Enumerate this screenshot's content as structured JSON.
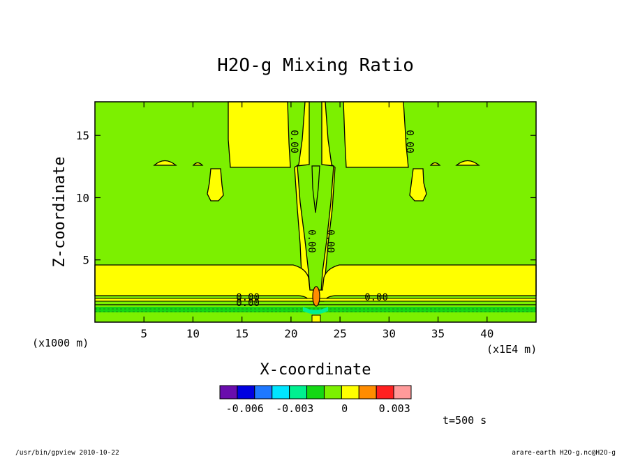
{
  "chart_data": {
    "type": "heatmap",
    "title": "H2O-g Mixing Ratio",
    "xlabel": "X-coordinate",
    "ylabel": "Z-coordinate",
    "x_unit_left": "(x1000 m)",
    "x_unit_right": "(x1E4 m)",
    "xlim": [
      0,
      45
    ],
    "ylim": [
      0,
      17.7
    ],
    "x_ticks": [
      "5",
      "10",
      "15",
      "20",
      "25",
      "30",
      "35",
      "40"
    ],
    "x_tick_values": [
      5,
      10,
      15,
      20,
      25,
      30,
      35,
      40
    ],
    "y_ticks": [
      "5",
      "10",
      "15"
    ],
    "y_tick_values": [
      5,
      10,
      15
    ],
    "contour_labels": [
      {
        "text": "0.00",
        "x": 20,
        "y": 14.5,
        "rotated": true
      },
      {
        "text": "0.00",
        "x": 31.8,
        "y": 14.5,
        "rotated": true
      },
      {
        "text": "0.00",
        "x": 21.8,
        "y": 6.5,
        "rotated": true
      },
      {
        "text": "0.00",
        "x": 23.7,
        "y": 6.5,
        "rotated": true
      },
      {
        "text": "0.00",
        "x": 15.6,
        "y": 1.75,
        "rotated": false
      },
      {
        "text": "0.00",
        "x": 15.6,
        "y": 1.3,
        "rotated": false
      },
      {
        "text": "0.00",
        "x": 28.7,
        "y": 1.75,
        "rotated": false
      }
    ],
    "colorbar": {
      "colors": [
        "#6a0dad",
        "#0000e0",
        "#1e78ff",
        "#00e5ff",
        "#00f090",
        "#14d814",
        "#7cf000",
        "#ffff00",
        "#ff8c00",
        "#ff2020",
        "#ff9a9a"
      ],
      "tick_labels": [
        "-0.006",
        "-0.003",
        "0",
        "0.003"
      ],
      "tick_values": [
        -0.006,
        -0.003,
        0,
        0.003
      ],
      "range": [
        -0.0075,
        0.004
      ]
    },
    "legend_placement": "bottom-center",
    "grid": false
  },
  "annotations": {
    "time": "t=500 s",
    "footer_left": "/usr/bin/gpview  2010-10-22",
    "footer_right": "arare-earth_H2O-g.nc@H2O-g"
  },
  "colors": {
    "background_field": "#7cf000",
    "positive": "#ffff00",
    "strong_positive": "#ff8c00",
    "negative": "#14d814"
  }
}
